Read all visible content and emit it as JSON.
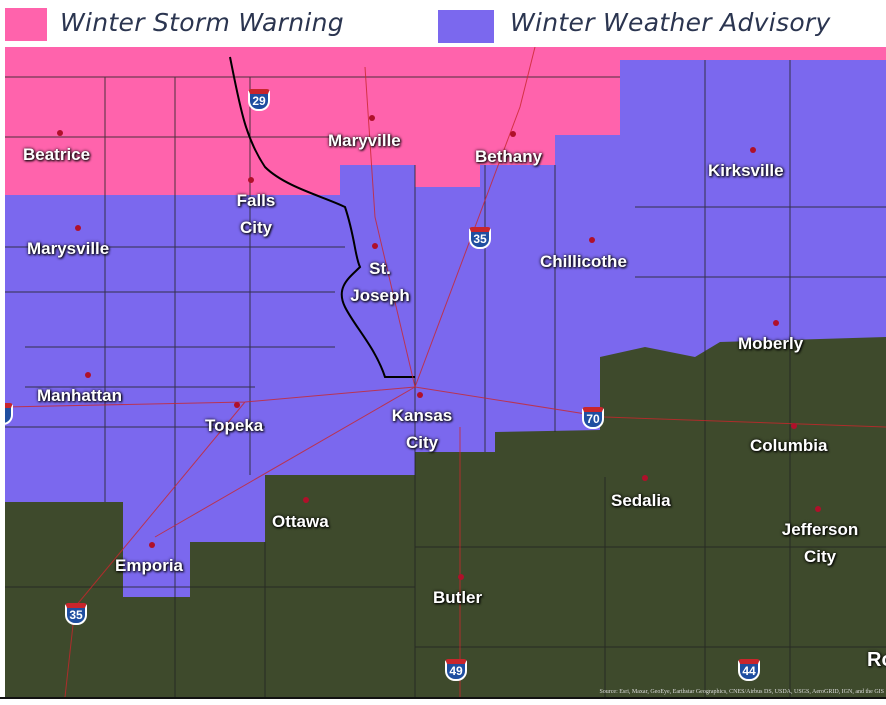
{
  "legend": {
    "items": [
      {
        "label": "Winter Storm Warning",
        "color": "#ff63ac"
      },
      {
        "label": "Winter Weather Advisory",
        "color": "#7b68ee"
      }
    ]
  },
  "map": {
    "colors": {
      "warning": "#ff63ac",
      "advisory": "#7b68ee",
      "basemap": "#3e4a2c"
    },
    "cities": [
      "Beatrice",
      "Maryville",
      "Bethany",
      "Kirksville",
      "Falls City",
      "Marysville",
      "St. Joseph",
      "Chillicothe",
      "Moberly",
      "Manhattan",
      "Topeka",
      "Kansas City",
      "Columbia",
      "Sedalia",
      "Ottawa",
      "Jefferson City",
      "Emporia",
      "Butler",
      "Ro"
    ],
    "interstates": [
      "29",
      "35",
      "70",
      "35",
      "49",
      "44",
      "0"
    ],
    "attribution": "Source: Esri, Maxar, GeoEye, Earthstar Geographics, CNES/Airbus DS, USDA, USGS, AeroGRID, IGN, and the GIS"
  }
}
